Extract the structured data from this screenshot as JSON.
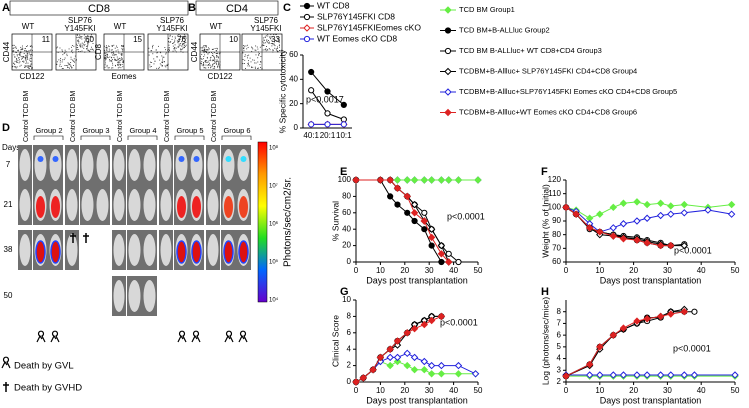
{
  "flow": {
    "panel_a": "A",
    "title_a": "CD8",
    "panel_b": "B",
    "title_b": "CD4",
    "plots": [
      {
        "label_lines": [
          "WT"
        ],
        "value": 11,
        "ylabel": "CD44",
        "xlabel": "CD122"
      },
      {
        "label_lines": [
          "SLP76",
          "Y145FKI"
        ],
        "value": 60
      },
      {
        "label_lines": [
          "WT"
        ],
        "value": 15,
        "ylabel": "CD8",
        "xlabel": "Eomes"
      },
      {
        "label_lines": [
          "SLP76",
          "Y145FKI"
        ],
        "value": 76
      },
      {
        "label_lines": [
          "WT"
        ],
        "value": 10,
        "ylabel": "CD44",
        "xlabel": "CD122"
      },
      {
        "label_lines": [
          "SLP76",
          "Y145FKI"
        ],
        "value": 33
      }
    ]
  },
  "imaging": {
    "panel": "D",
    "days_label": "Days",
    "days": [
      "7",
      "21",
      "38",
      "50"
    ],
    "control_label": "Control TCD BM",
    "groups": [
      "Group 2",
      "Group 3",
      "Group 4",
      "Group 5",
      "Group 6"
    ],
    "colorbar_label": "Photons/sec/cm2/sr.",
    "colorbar_ticks": [
      "10⁸",
      "10⁷",
      "10⁶",
      "10⁵",
      "10⁴"
    ],
    "legend": [
      "Death by GVL",
      "Death by GVHD"
    ]
  },
  "group_legend": [
    {
      "name": "TCD BM Group1",
      "color": "#66ee44",
      "marker": "diamond",
      "filled": true
    },
    {
      "name": "TCD BM+B-ALLluc Group2",
      "color": "#000000",
      "marker": "circle",
      "filled": true
    },
    {
      "name": "TCD BM B-ALLluc+ WT CD8+CD4 Group3",
      "color": "#000000",
      "marker": "circle",
      "filled": false
    },
    {
      "name": "TCDBM+B-Allluc+ SLP76Y145FKI CD4+CD8 Group4",
      "color": "#000000",
      "marker": "diamond",
      "filled": false
    },
    {
      "name": "TCDBM+B-Allluc+SLP76Y145FKI Eomes cKO CD4+CD8 Group5",
      "color": "#2222dd",
      "marker": "diamond",
      "filled": false
    },
    {
      "name": "TCDBM+B-Allluc+WT Eomes cKO CD4+CD8 Group6",
      "color": "#dd2222",
      "marker": "diamond",
      "filled": true
    }
  ],
  "chart_data": [
    {
      "type": "line",
      "panel": "C",
      "ylabel": "% Specific cytotoxicity",
      "annotation": "p<0.0017",
      "categories": [
        "40:1",
        "20:1",
        "10:1"
      ],
      "ylim": [
        0,
        60
      ],
      "yticks": [
        0,
        20,
        40,
        60
      ],
      "series": [
        {
          "name": "WT CD8",
          "color": "#000000",
          "marker": "circle",
          "filled": true,
          "values": [
            46,
            30,
            19
          ]
        },
        {
          "name": "SLP76Y145FKI CD8",
          "color": "#000000",
          "marker": "circle",
          "filled": false,
          "values": [
            31,
            12,
            7
          ]
        },
        {
          "name": "SLP76Y145FKIEomes cKO",
          "color": "#dd2222",
          "marker": "diamond",
          "filled": false,
          "values": [
            3,
            3,
            3
          ]
        },
        {
          "name": "WT Eomes cKO CD8",
          "color": "#2222dd",
          "marker": "circle",
          "filled": false,
          "values": [
            3,
            3,
            3
          ]
        }
      ]
    },
    {
      "type": "line",
      "panel": "E",
      "ylabel": "% Survival",
      "xlabel": "Days post transplantation",
      "annotation": "p<0.0001",
      "x": [
        0,
        10,
        14,
        17,
        21,
        24,
        28,
        31,
        35,
        38,
        42,
        50
      ],
      "xlim": [
        0,
        50
      ],
      "xticks": [
        0,
        10,
        20,
        30,
        40,
        50
      ],
      "ylim": [
        0,
        100
      ],
      "yticks": [
        0,
        20,
        40,
        60,
        80,
        100
      ],
      "series": [
        {
          "color": "#2222dd",
          "marker": "diamond",
          "filled": false,
          "values": [
            100,
            100,
            100,
            100,
            100,
            100,
            100,
            100,
            100,
            100,
            100,
            100
          ]
        },
        {
          "color": "#66ee44",
          "marker": "diamond",
          "filled": true,
          "values": [
            100,
            100,
            100,
            100,
            100,
            100,
            100,
            100,
            100,
            100,
            100,
            100
          ]
        },
        {
          "color": "#000000",
          "marker": "circle",
          "filled": true,
          "values": [
            100,
            100,
            80,
            70,
            60,
            50,
            40,
            20,
            0,
            null,
            null,
            null
          ]
        },
        {
          "color": "#000000",
          "marker": "circle",
          "filled": false,
          "values": [
            100,
            100,
            100,
            90,
            80,
            70,
            60,
            40,
            20,
            10,
            0,
            null
          ]
        },
        {
          "color": "#000000",
          "marker": "diamond",
          "filled": false,
          "values": [
            100,
            100,
            100,
            90,
            80,
            70,
            50,
            40,
            20,
            0,
            null,
            null
          ]
        },
        {
          "color": "#dd2222",
          "marker": "diamond",
          "filled": true,
          "values": [
            100,
            100,
            100,
            90,
            80,
            60,
            50,
            30,
            10,
            0,
            null,
            null
          ]
        }
      ]
    },
    {
      "type": "line",
      "panel": "F",
      "ylabel": "Weight (% of Initial)",
      "xlabel": "Days post transplantation",
      "annotation": "p<0.0001",
      "x": [
        0,
        3,
        7,
        10,
        14,
        17,
        21,
        24,
        28,
        31,
        35,
        42,
        49
      ],
      "xlim": [
        0,
        50
      ],
      "xticks": [
        0,
        10,
        20,
        30,
        40,
        50
      ],
      "ylim": [
        60,
        120
      ],
      "yticks": [
        60,
        70,
        80,
        90,
        100,
        110,
        120
      ],
      "series": [
        {
          "color": "#66ee44",
          "marker": "diamond",
          "filled": true,
          "values": [
            100,
            98,
            92,
            95,
            100,
            103,
            104,
            102,
            103,
            101,
            102,
            100,
            102
          ]
        },
        {
          "color": "#2222dd",
          "marker": "diamond",
          "filled": false,
          "values": [
            100,
            97,
            88,
            82,
            85,
            88,
            90,
            92,
            94,
            95,
            96,
            98,
            95
          ]
        },
        {
          "color": "#000000",
          "marker": "circle",
          "filled": true,
          "values": [
            100,
            95,
            85,
            82,
            80,
            78,
            76,
            74,
            72,
            72,
            null,
            null,
            null
          ]
        },
        {
          "color": "#000000",
          "marker": "circle",
          "filled": false,
          "values": [
            100,
            95,
            84,
            82,
            80,
            79,
            78,
            76,
            74,
            72,
            73,
            null,
            null
          ]
        },
        {
          "color": "#000000",
          "marker": "diamond",
          "filled": false,
          "values": [
            100,
            95,
            85,
            80,
            79,
            78,
            77,
            75,
            73,
            72,
            72,
            null,
            null
          ]
        },
        {
          "color": "#dd2222",
          "marker": "diamond",
          "filled": true,
          "values": [
            100,
            95,
            85,
            82,
            79,
            77,
            76,
            74,
            72,
            72,
            null,
            null,
            null
          ]
        }
      ]
    },
    {
      "type": "line",
      "panel": "G",
      "ylabel": "Clinical Score",
      "xlabel": "Days post transplantation",
      "annotation": "p<0.0001",
      "x": [
        0,
        3,
        7,
        10,
        14,
        17,
        21,
        24,
        28,
        31,
        35,
        42,
        49
      ],
      "xlim": [
        0,
        50
      ],
      "xticks": [
        0,
        10,
        20,
        30,
        40,
        50
      ],
      "ylim": [
        0,
        10
      ],
      "yticks": [
        0,
        2,
        4,
        6,
        8,
        10
      ],
      "series": [
        {
          "color": "#66ee44",
          "marker": "diamond",
          "filled": true,
          "values": [
            0,
            0.5,
            1.5,
            2.5,
            2,
            2.5,
            2,
            1.5,
            1.5,
            1,
            1,
            1,
            1
          ]
        },
        {
          "color": "#2222dd",
          "marker": "diamond",
          "filled": false,
          "values": [
            0,
            0.5,
            1.5,
            2.5,
            3,
            3,
            3.5,
            3,
            2.5,
            2,
            2,
            2,
            1
          ]
        },
        {
          "color": "#000000",
          "marker": "circle",
          "filled": true,
          "values": [
            0,
            0.5,
            1.5,
            3,
            4,
            5,
            6,
            7,
            7.5,
            8,
            null,
            null,
            null
          ]
        },
        {
          "color": "#000000",
          "marker": "circle",
          "filled": false,
          "values": [
            0,
            0.5,
            1.5,
            3,
            4,
            5,
            6,
            7,
            7.5,
            8,
            8,
            null,
            null
          ]
        },
        {
          "color": "#000000",
          "marker": "diamond",
          "filled": false,
          "values": [
            0,
            0.5,
            1.5,
            3,
            4,
            4.5,
            6,
            7,
            7.5,
            8,
            8,
            null,
            null
          ]
        },
        {
          "color": "#dd2222",
          "marker": "diamond",
          "filled": true,
          "values": [
            0,
            0.5,
            1.5,
            3,
            4,
            5,
            6,
            6.5,
            7,
            7.5,
            8,
            null,
            null
          ]
        }
      ]
    },
    {
      "type": "line",
      "panel": "H",
      "ylabel": "Log (photons/sec/mice)",
      "xlabel": "Days post transplantation",
      "annotation": "p<0.0001",
      "x": [
        0,
        7,
        10,
        14,
        17,
        21,
        24,
        28,
        31,
        35,
        38,
        50
      ],
      "xlim": [
        0,
        50
      ],
      "xticks": [
        0,
        10,
        20,
        30,
        40,
        50
      ],
      "ylim": [
        2,
        9
      ],
      "yticks": [
        2,
        3,
        4,
        5,
        6,
        7,
        8
      ],
      "series": [
        {
          "color": "#66ee44",
          "marker": "diamond",
          "filled": true,
          "values": [
            2.5,
            2.5,
            2.5,
            2.5,
            2.5,
            2.5,
            2.5,
            2.5,
            2.5,
            2.5,
            2.5,
            2.5
          ]
        },
        {
          "color": "#2222dd",
          "marker": "diamond",
          "filled": false,
          "values": [
            2.6,
            2.6,
            2.6,
            2.6,
            2.6,
            2.6,
            2.6,
            2.6,
            2.6,
            2.6,
            2.6,
            2.6
          ]
        },
        {
          "color": "#000000",
          "marker": "circle",
          "filled": true,
          "values": [
            2.5,
            3.5,
            5,
            6,
            6.5,
            7,
            7.5,
            7.5,
            8,
            null,
            null,
            null
          ]
        },
        {
          "color": "#000000",
          "marker": "circle",
          "filled": false,
          "values": [
            2.5,
            3.5,
            5,
            6,
            6.5,
            7,
            7.2,
            7.5,
            8,
            8,
            8,
            null
          ]
        },
        {
          "color": "#000000",
          "marker": "diamond",
          "filled": false,
          "values": [
            2.5,
            3.4,
            4.8,
            6,
            6.5,
            7,
            7.4,
            7.6,
            8,
            8.2,
            null,
            null
          ]
        },
        {
          "color": "#dd2222",
          "marker": "diamond",
          "filled": true,
          "values": [
            2.5,
            3.5,
            5,
            6,
            6.6,
            7.2,
            7.4,
            7.6,
            7.8,
            8,
            null,
            null
          ]
        }
      ]
    }
  ]
}
